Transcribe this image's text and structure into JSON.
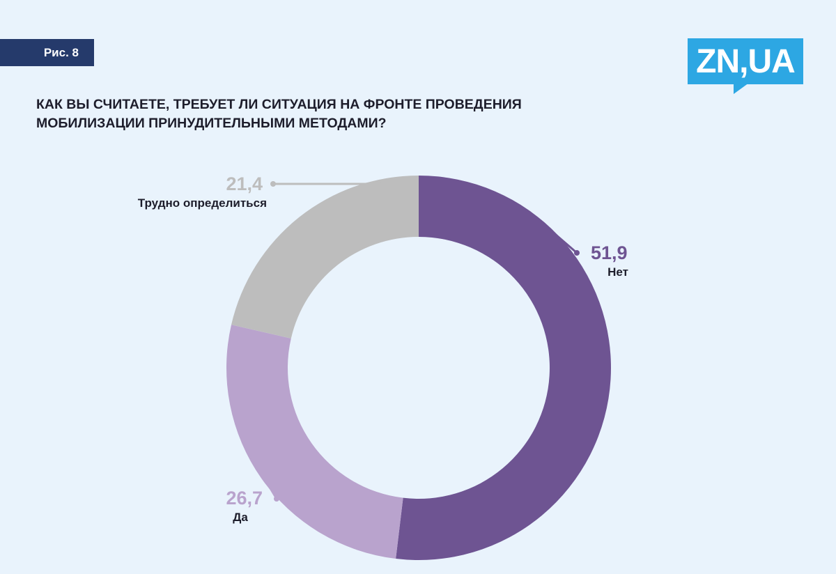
{
  "figure_tag": "Рис. 8",
  "logo": {
    "text": "ZN,UA",
    "color": "#2da7e3"
  },
  "title": {
    "line1": "Как вы считаете, требует ли ситуация на фронте проведения",
    "line2": "мобилизации принудительными методами?"
  },
  "chart_data": {
    "type": "pie",
    "variant": "donut",
    "start": "top",
    "direction": "clockwise",
    "slices": [
      {
        "label": "Нет",
        "value": 51.9,
        "display": "51,9",
        "color": "#6e5492",
        "value_color": "#6e5492",
        "label_side": "right"
      },
      {
        "label": "Да",
        "value": 26.7,
        "display": "26,7",
        "color": "#b9a3cd",
        "value_color": "#b9a3cd",
        "label_side": "left"
      },
      {
        "label": "Трудно определиться",
        "value": 21.4,
        "display": "21,4",
        "color": "#bdbdbd",
        "value_color": "#bdbdbd",
        "label_side": "left"
      }
    ]
  }
}
